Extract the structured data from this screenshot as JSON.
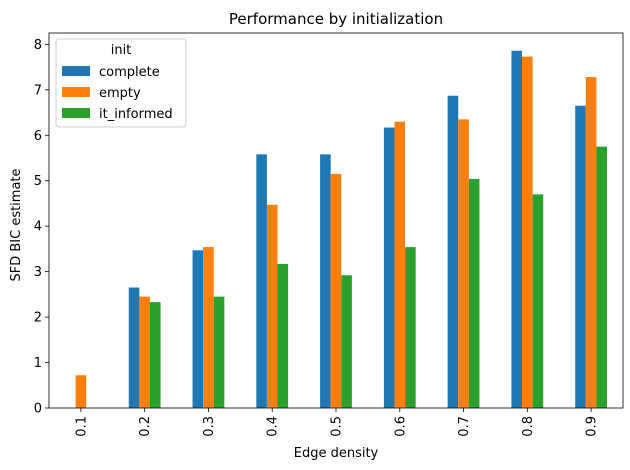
{
  "chart_data": {
    "type": "bar",
    "title": "Performance by initialization",
    "xlabel": "Edge density",
    "ylabel": "SFD BIC estimate",
    "categories": [
      "0.1",
      "0.2",
      "0.3",
      "0.4",
      "0.5",
      "0.6",
      "0.7",
      "0.8",
      "0.9"
    ],
    "series": [
      {
        "name": "complete",
        "color": "#1f77b4",
        "values": [
          null,
          2.65,
          3.47,
          5.58,
          5.58,
          6.17,
          6.87,
          7.86,
          6.65
        ]
      },
      {
        "name": "empty",
        "color": "#ff7f0e",
        "values": [
          0.72,
          2.45,
          3.54,
          4.47,
          5.15,
          6.3,
          6.35,
          7.73,
          7.28
        ]
      },
      {
        "name": "it_informed",
        "color": "#2ca02c",
        "values": [
          null,
          2.33,
          2.45,
          3.17,
          2.92,
          3.54,
          5.04,
          4.7,
          5.75
        ]
      }
    ],
    "yticks": [
      0,
      1,
      2,
      3,
      4,
      5,
      6,
      7,
      8
    ],
    "ylim": [
      0,
      8.25
    ],
    "legend": {
      "title": "init",
      "placement": "upper-left"
    },
    "grid": false
  }
}
